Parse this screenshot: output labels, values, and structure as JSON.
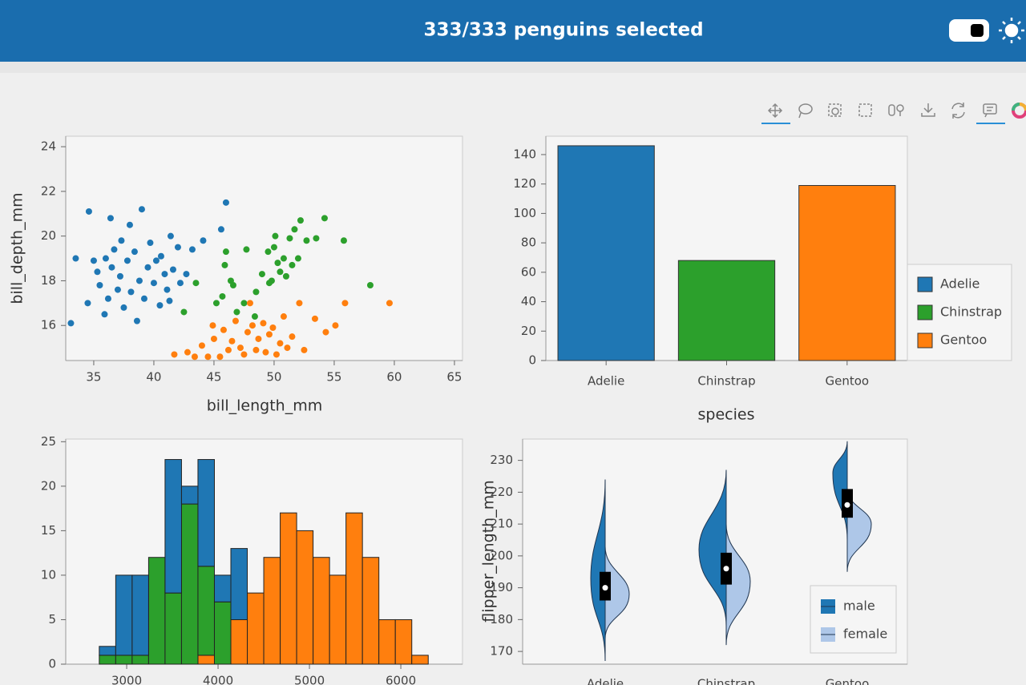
{
  "header": {
    "title": "333/333 penguins selected"
  },
  "chart_data": [
    {
      "type": "scatter",
      "xlabel": "bill_length_mm",
      "ylabel": "bill_depth_mm",
      "xlim": [
        32.67,
        65.67
      ],
      "ylim": [
        14.43,
        24.47
      ],
      "xticks": [
        35,
        40,
        45,
        50,
        55,
        60,
        65
      ],
      "yticks": [
        16,
        18,
        20,
        22,
        24
      ],
      "series": [
        {
          "color": "#1f77b4",
          "x": [
            33.1,
            33.5,
            34.6,
            34.5,
            35.3,
            35.5,
            35.9,
            36.0,
            36.2,
            36.5,
            36.7,
            37.0,
            37.2,
            37.5,
            37.8,
            38.0,
            38.1,
            38.4,
            38.6,
            38.8,
            39.0,
            39.2,
            39.5,
            39.7,
            40.0,
            40.2,
            40.5,
            40.6,
            40.9,
            41.1,
            41.4,
            41.6,
            42.0,
            42.2,
            42.7,
            43.2,
            44.1,
            45.6,
            46.0,
            41.3,
            37.3,
            36.4,
            35.0
          ],
          "y": [
            16.1,
            19.0,
            21.1,
            17.0,
            18.4,
            17.8,
            16.5,
            19.0,
            17.2,
            18.6,
            19.4,
            17.6,
            18.2,
            16.8,
            18.9,
            20.5,
            17.5,
            19.3,
            16.2,
            18.0,
            21.2,
            17.2,
            18.6,
            19.7,
            17.9,
            18.9,
            16.9,
            19.1,
            18.3,
            17.6,
            20.0,
            18.5,
            19.5,
            17.9,
            18.3,
            19.4,
            19.8,
            20.3,
            21.5,
            17.1,
            19.8,
            20.8,
            18.9
          ]
        },
        {
          "color": "#2ca02c",
          "x": [
            42.5,
            43.5,
            45.2,
            45.7,
            45.9,
            46.4,
            46.6,
            46.9,
            47.5,
            48.5,
            49.0,
            49.5,
            49.8,
            50.0,
            50.3,
            50.5,
            50.8,
            51.0,
            51.3,
            51.5,
            51.7,
            52.0,
            52.2,
            52.7,
            53.5,
            54.2,
            55.8,
            58.0,
            46.0,
            47.7,
            50.1,
            48.4,
            49.6
          ],
          "y": [
            16.6,
            17.9,
            17.0,
            17.3,
            18.7,
            18.0,
            17.8,
            16.6,
            17.0,
            17.5,
            18.3,
            19.3,
            18.0,
            19.5,
            18.8,
            18.4,
            19.0,
            18.2,
            19.9,
            18.7,
            20.3,
            19.0,
            20.7,
            19.8,
            19.9,
            20.8,
            19.8,
            17.8,
            19.3,
            19.4,
            20.0,
            16.4,
            17.9
          ]
        },
        {
          "color": "#ff7f0e",
          "x": [
            41.7,
            42.8,
            43.4,
            44.0,
            44.5,
            45.0,
            44.9,
            45.5,
            45.8,
            46.2,
            46.5,
            46.8,
            47.2,
            47.5,
            47.8,
            48.2,
            48.5,
            48.7,
            49.1,
            49.3,
            49.6,
            49.9,
            50.2,
            50.5,
            50.8,
            51.1,
            51.5,
            52.1,
            53.4,
            54.3,
            55.1,
            55.9,
            59.6,
            52.5,
            48.0
          ],
          "y": [
            14.7,
            14.8,
            14.6,
            15.1,
            14.6,
            15.4,
            16.0,
            14.6,
            15.8,
            14.9,
            15.3,
            16.2,
            15.0,
            14.7,
            15.7,
            16.0,
            14.9,
            15.4,
            16.1,
            14.8,
            15.6,
            15.9,
            14.7,
            15.2,
            16.4,
            15.0,
            15.5,
            17.0,
            16.3,
            15.7,
            16.0,
            17.0,
            17.0,
            14.9,
            17.0
          ]
        }
      ]
    },
    {
      "type": "bar",
      "xlabel": "species",
      "categories": [
        "Adelie",
        "Chinstrap",
        "Gentoo"
      ],
      "values": [
        146,
        68,
        119
      ],
      "colors": [
        "#1f77b4",
        "#2ca02c",
        "#ff7f0e"
      ],
      "ylim": [
        0,
        152.5
      ],
      "yticks": [
        0,
        20,
        40,
        60,
        80,
        100,
        120,
        140
      ],
      "legend": "right"
    },
    {
      "type": "histogram",
      "stacked": true,
      "bins": [
        2700,
        2880,
        3060,
        3240,
        3420,
        3600,
        3780,
        3960,
        4140,
        4320,
        4500,
        4680,
        4860,
        5040,
        5220,
        5400,
        5580,
        5760,
        5940,
        6120,
        6300
      ],
      "xlim": [
        2333,
        6675
      ],
      "ylim": [
        0,
        25.3
      ],
      "xticks": [
        3000,
        4000,
        5000,
        6000
      ],
      "yticks": [
        0,
        5,
        10,
        15,
        20,
        25
      ],
      "series": [
        {
          "color": "#ff7f0e",
          "values": [
            0,
            0,
            0,
            0,
            0,
            0,
            1,
            0,
            5,
            8,
            12,
            17,
            15,
            12,
            10,
            17,
            12,
            5,
            5,
            1
          ]
        },
        {
          "color": "#2ca02c",
          "values": [
            1,
            1,
            1,
            12,
            8,
            18,
            10,
            7,
            0,
            0,
            0,
            0,
            0,
            0,
            0,
            0,
            0,
            0,
            0,
            0
          ]
        },
        {
          "color": "#1f77b4",
          "values": [
            1,
            9,
            9,
            0,
            15,
            2,
            12,
            3,
            8,
            0,
            0,
            0,
            0,
            0,
            0,
            0,
            0,
            0,
            0,
            0
          ]
        }
      ]
    },
    {
      "type": "violin",
      "ylabel": "flipper_length_mm",
      "categories": [
        "Adelie",
        "Chinstrap",
        "Gentoo"
      ],
      "ylim": [
        166,
        236.7
      ],
      "yticks": [
        170,
        180,
        190,
        200,
        210,
        220,
        230
      ],
      "q1": [
        186,
        191,
        212
      ],
      "median": [
        190,
        196,
        216
      ],
      "q3": [
        195,
        201,
        221
      ],
      "legend": "bottom-right",
      "series": [
        {
          "name": "male",
          "color": "#1f77b4",
          "min": [
            167,
            178,
            205
          ],
          "max": [
            224,
            227,
            236
          ],
          "peak": [
            193,
            202,
            226
          ],
          "width": [
            0.45,
            0.85,
            0.45
          ]
        },
        {
          "name": "female",
          "color": "#aec7e8",
          "min": [
            174,
            172,
            195
          ],
          "max": [
            203,
            210,
            221
          ],
          "peak": [
            188,
            192,
            210
          ],
          "width": [
            0.75,
            0.75,
            0.75
          ]
        }
      ]
    }
  ]
}
